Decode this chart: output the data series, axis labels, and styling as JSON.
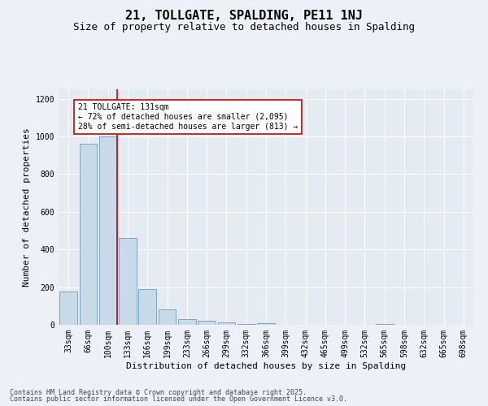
{
  "title1": "21, TOLLGATE, SPALDING, PE11 1NJ",
  "title2": "Size of property relative to detached houses in Spalding",
  "xlabel": "Distribution of detached houses by size in Spalding",
  "ylabel": "Number of detached properties",
  "categories": [
    "33sqm",
    "66sqm",
    "100sqm",
    "133sqm",
    "166sqm",
    "199sqm",
    "233sqm",
    "266sqm",
    "299sqm",
    "332sqm",
    "366sqm",
    "399sqm",
    "432sqm",
    "465sqm",
    "499sqm",
    "532sqm",
    "565sqm",
    "598sqm",
    "632sqm",
    "665sqm",
    "698sqm"
  ],
  "values": [
    175,
    960,
    1000,
    460,
    190,
    80,
    30,
    20,
    15,
    5,
    10,
    0,
    0,
    0,
    0,
    0,
    5,
    0,
    0,
    0,
    0
  ],
  "bar_color": "#c8d9ea",
  "bar_edge_color": "#6a9ec0",
  "vline_color": "#cc0000",
  "vline_x_index": 2,
  "annotation_text": "21 TOLLGATE: 131sqm\n← 72% of detached houses are smaller (2,095)\n28% of semi-detached houses are larger (813) →",
  "ylim": [
    0,
    1250
  ],
  "yticks": [
    0,
    200,
    400,
    600,
    800,
    1000,
    1200
  ],
  "footer1": "Contains HM Land Registry data © Crown copyright and database right 2025.",
  "footer2": "Contains public sector information licensed under the Open Government Licence v3.0.",
  "bg_color": "#edf1f7",
  "plot_bg_color": "#e4ebf3",
  "grid_color": "#ffffff",
  "title1_fontsize": 11,
  "title2_fontsize": 9,
  "tick_fontsize": 7,
  "label_fontsize": 8,
  "footer_fontsize": 6,
  "annotation_fontsize": 7
}
